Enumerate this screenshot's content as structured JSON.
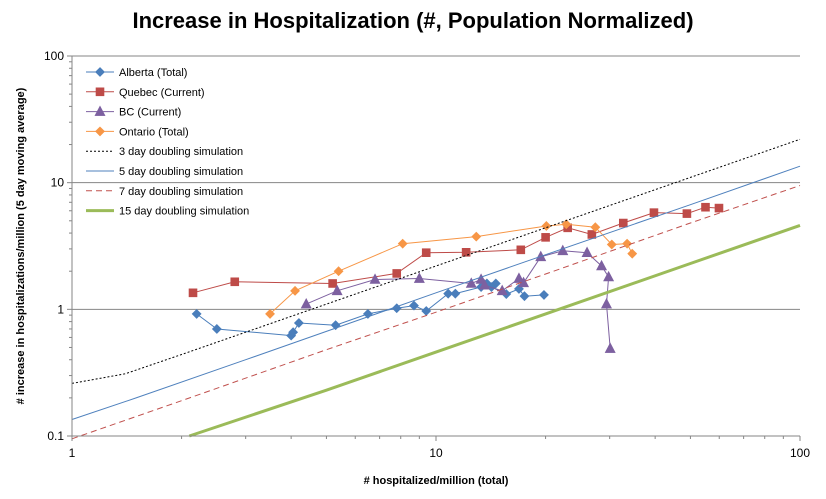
{
  "chart_data": {
    "type": "scatter",
    "title": "Increase in Hospitalization (#, Population Normalized)",
    "xlabel": "# hospitalized/million  (total)",
    "ylabel": "# increase  in hospitalizations/million  (5 day moving average)",
    "xscale": "log",
    "yscale": "log",
    "xlim": [
      1,
      100
    ],
    "ylim": [
      0.1,
      100
    ],
    "x_ticks": [
      "1",
      "10",
      "100"
    ],
    "y_ticks": [
      "0.1",
      "1",
      "10",
      "100"
    ],
    "grid": "horizontal major",
    "legend_position": "top-left",
    "series": [
      {
        "name": "Alberta (Total)",
        "color": "#4a7ebb",
        "marker": "diamond",
        "line": "solid",
        "points": [
          [
            2.2,
            0.92
          ],
          [
            2.5,
            0.7
          ],
          [
            4.0,
            0.62
          ],
          [
            4.05,
            0.66
          ],
          [
            4.2,
            0.78
          ],
          [
            5.3,
            0.75
          ],
          [
            6.5,
            0.92
          ],
          [
            7.8,
            1.02
          ],
          [
            8.7,
            1.07
          ],
          [
            9.4,
            0.97
          ],
          [
            10.8,
            1.33
          ],
          [
            11.3,
            1.33
          ],
          [
            13.3,
            1.5
          ],
          [
            13.8,
            1.6
          ],
          [
            14.6,
            1.6
          ],
          [
            14.2,
            1.5
          ],
          [
            15.6,
            1.32
          ],
          [
            16.9,
            1.45
          ],
          [
            17.5,
            1.27
          ],
          [
            19.8,
            1.3
          ]
        ]
      },
      {
        "name": "Quebec (Current)",
        "color": "#be4b48",
        "marker": "square",
        "line": "solid",
        "points": [
          [
            2.15,
            1.35
          ],
          [
            2.8,
            1.65
          ],
          [
            5.2,
            1.6
          ],
          [
            7.8,
            1.92
          ],
          [
            9.4,
            2.8
          ],
          [
            12.1,
            2.82
          ],
          [
            17.1,
            2.95
          ],
          [
            20.0,
            3.7
          ],
          [
            23.0,
            4.4
          ],
          [
            26.8,
            3.9
          ],
          [
            32.7,
            4.8
          ],
          [
            39.7,
            5.8
          ],
          [
            48.9,
            5.7
          ],
          [
            55.0,
            6.4
          ],
          [
            59.9,
            6.3
          ]
        ]
      },
      {
        "name": "BC (Current)",
        "color": "#7d60a0",
        "marker": "triangle",
        "line": "solid",
        "points": [
          [
            4.4,
            1.1
          ],
          [
            5.35,
            1.4
          ],
          [
            6.8,
            1.72
          ],
          [
            9.0,
            1.75
          ],
          [
            12.5,
            1.6
          ],
          [
            13.3,
            1.72
          ],
          [
            13.6,
            1.55
          ],
          [
            15.2,
            1.4
          ],
          [
            16.9,
            1.75
          ],
          [
            17.4,
            1.62
          ],
          [
            19.4,
            2.6
          ],
          [
            22.3,
            2.9
          ],
          [
            26.0,
            2.8
          ],
          [
            28.5,
            2.2
          ],
          [
            29.8,
            1.8
          ],
          [
            29.4,
            1.1
          ],
          [
            30.1,
            0.49
          ]
        ]
      },
      {
        "name": "Ontario (Total)",
        "color": "#f79646",
        "marker": "diamond",
        "line": "solid",
        "points": [
          [
            3.5,
            0.92
          ],
          [
            4.1,
            1.4
          ],
          [
            5.4,
            2.0
          ],
          [
            8.1,
            3.3
          ],
          [
            12.9,
            3.75
          ],
          [
            20.1,
            4.55
          ],
          [
            22.8,
            4.7
          ],
          [
            27.4,
            4.45
          ],
          [
            30.4,
            3.25
          ],
          [
            33.5,
            3.3
          ],
          [
            34.6,
            2.75
          ]
        ]
      },
      {
        "name": "3 day doubling simulation",
        "color": "#000000",
        "line": "dotted",
        "points": [
          [
            1,
            0.26
          ],
          [
            1.4,
            0.31
          ],
          [
            2.0,
            0.44
          ],
          [
            4.0,
            0.88
          ],
          [
            10,
            2.2
          ],
          [
            20,
            4.4
          ],
          [
            50,
            11.0
          ],
          [
            100,
            22.0
          ]
        ]
      },
      {
        "name": "5 day doubling simulation",
        "color": "#4f81bd",
        "line": "solid",
        "points": [
          [
            1,
            0.135
          ],
          [
            1.5,
            0.2
          ],
          [
            3,
            0.4
          ],
          [
            5,
            0.67
          ],
          [
            10,
            1.35
          ],
          [
            20,
            2.7
          ],
          [
            50,
            6.7
          ],
          [
            100,
            13.5
          ]
        ]
      },
      {
        "name": "7 day doubling simulation",
        "color": "#c0504d",
        "line": "dashed",
        "points": [
          [
            1,
            0.095
          ],
          [
            2,
            0.19
          ],
          [
            5,
            0.48
          ],
          [
            10,
            0.95
          ],
          [
            20,
            1.9
          ],
          [
            50,
            4.8
          ],
          [
            100,
            9.5
          ]
        ]
      },
      {
        "name": "15 day doubling simulation",
        "color": "#9bbb59",
        "line": "thick",
        "points": [
          [
            2.1,
            0.1
          ],
          [
            5,
            0.23
          ],
          [
            10,
            0.46
          ],
          [
            20,
            0.92
          ],
          [
            50,
            2.3
          ],
          [
            100,
            4.6
          ]
        ]
      }
    ]
  }
}
